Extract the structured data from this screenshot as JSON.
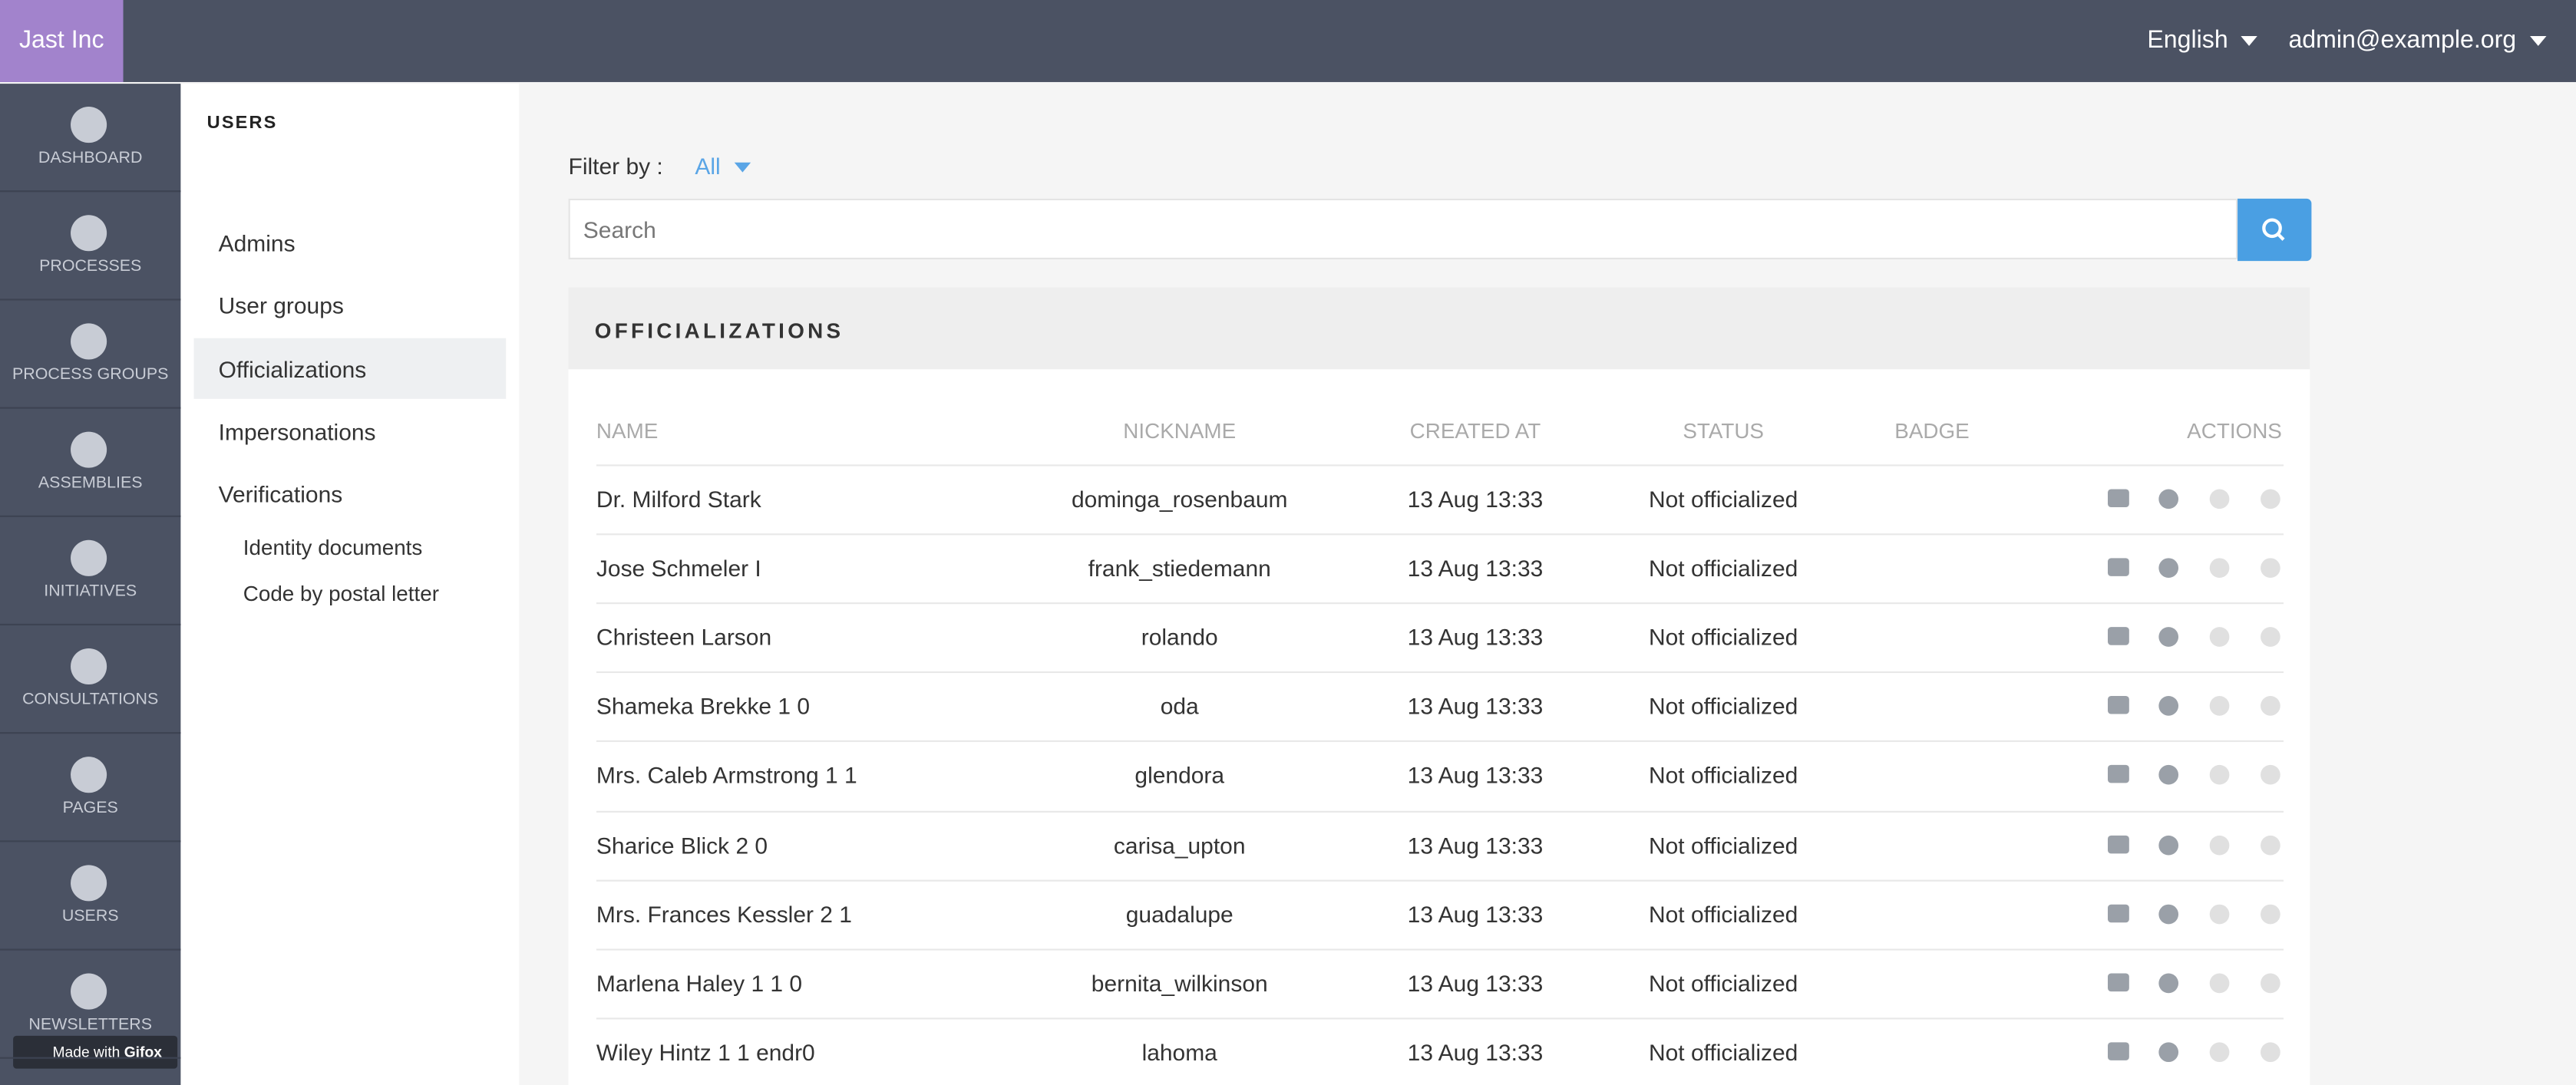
{
  "header": {
    "brand": "Jast Inc",
    "language": "English",
    "user": "admin@example.org"
  },
  "sidebar": [
    "DASHBOARD",
    "PROCESSES",
    "PROCESS GROUPS",
    "ASSEMBLIES",
    "INITIATIVES",
    "CONSULTATIONS",
    "PAGES",
    "USERS",
    "NEWSLETTERS"
  ],
  "subnav": {
    "title": "USERS",
    "items": [
      "Admins",
      "User groups",
      "Officializations",
      "Impersonations",
      "Verifications"
    ],
    "subitems": [
      "Identity documents",
      "Code by postal letter"
    ]
  },
  "filter": {
    "label": "Filter by :",
    "value": "All",
    "search_placeholder": "Search"
  },
  "table": {
    "title": "OFFICIALIZATIONS",
    "columns": [
      "NAME",
      "NICKNAME",
      "CREATED AT",
      "STATUS",
      "BADGE",
      "ACTIONS"
    ],
    "rows": [
      [
        "Dr. Milford Stark",
        "dominga_rosenbaum",
        "13 Aug 13:33",
        "Not officialized"
      ],
      [
        "Jose Schmeler I",
        "frank_stiedemann",
        "13 Aug 13:33",
        "Not officialized"
      ],
      [
        "Christeen Larson",
        "rolando",
        "13 Aug 13:33",
        "Not officialized"
      ],
      [
        "Shameka Brekke 1 0",
        "oda",
        "13 Aug 13:33",
        "Not officialized"
      ],
      [
        "Mrs. Caleb Armstrong 1 1",
        "glendora",
        "13 Aug 13:33",
        "Not officialized"
      ],
      [
        "Sharice Blick 2 0",
        "carisa_upton",
        "13 Aug 13:33",
        "Not officialized"
      ],
      [
        "Mrs. Frances Kessler 2 1",
        "guadalupe",
        "13 Aug 13:33",
        "Not officialized"
      ],
      [
        "Marlena Haley 1 1 0",
        "bernita_wilkinson",
        "13 Aug 13:33",
        "Not officialized"
      ],
      [
        "Wiley Hintz 1 1 endr0",
        "lahoma",
        "13 Aug 13:33",
        "Not officialized"
      ]
    ]
  },
  "watermark": {
    "text": "Made with",
    "brand": "Gifox"
  }
}
